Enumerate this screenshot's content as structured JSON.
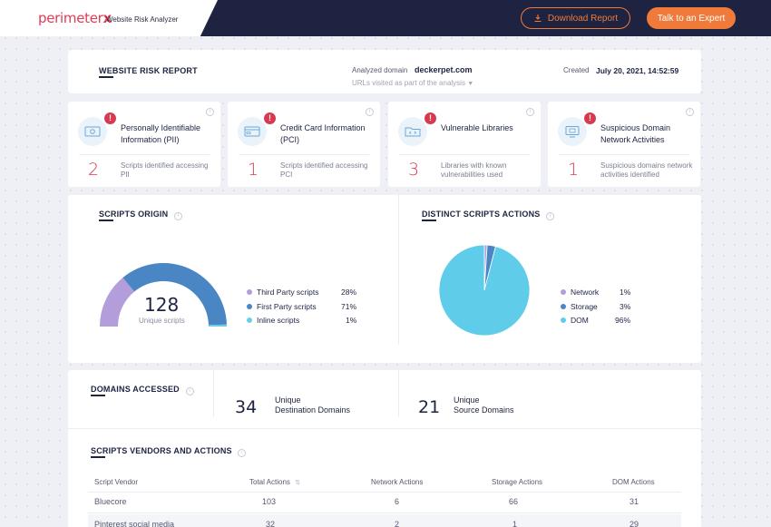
{
  "header": {
    "logo_text": "perimeter",
    "logo_mark": "x",
    "logo_subtitle": "Website Risk Analyzer",
    "download_label": "Download Report",
    "expert_label": "Talk to an Expert",
    "accent_color": "#f07a3a"
  },
  "report": {
    "title": "WEBSITE RISK REPORT",
    "domain_label": "Analyzed domain",
    "domain_value": "deckerpet.com",
    "urls_label": "URLs visited as part of the analysis",
    "created_label": "Created",
    "created_value": "July 20, 2021, 14:52:59"
  },
  "kpis": [
    {
      "title": "Personally Identifiable Information (PII)",
      "value": "2",
      "desc": "Scripts identified accessing PII",
      "icon": "id-card-icon"
    },
    {
      "title": "Credit Card Information (PCI)",
      "value": "1",
      "desc": "Scripts identified accessing PCI",
      "icon": "credit-card-icon"
    },
    {
      "title": "Vulnerable Libraries",
      "value": "3",
      "desc": "Libraries with known vulnerabilities used",
      "icon": "code-folder-icon"
    },
    {
      "title": "Suspicious Domain Network Activities",
      "value": "1",
      "desc": "Suspicious domains network activities identified",
      "icon": "monitor-icon"
    }
  ],
  "scripts_origin": {
    "title": "SCRIPTS ORIGIN",
    "total": "128",
    "total_label": "Unique scripts",
    "items": [
      {
        "label": "Third Party scripts",
        "value": "28%",
        "pct": 28,
        "color": "#b39ddb"
      },
      {
        "label": "First Party scripts",
        "value": "71%",
        "pct": 71,
        "color": "#4b86c4"
      },
      {
        "label": "Inline scripts",
        "value": "1%",
        "pct": 1,
        "color": "#6ccde8"
      }
    ]
  },
  "scripts_actions": {
    "title": "DISTINCT SCRIPTS ACTIONS",
    "items": [
      {
        "label": "Network",
        "value": "1%",
        "pct": 1,
        "color": "#b39ddb"
      },
      {
        "label": "Storage",
        "value": "3%",
        "pct": 3,
        "color": "#4b86c4"
      },
      {
        "label": "DOM",
        "value": "96%",
        "pct": 96,
        "color": "#5fcdea"
      }
    ]
  },
  "domains": {
    "title": "DOMAINS ACCESSED",
    "destination_count": "34",
    "destination_label_1": "Unique",
    "destination_label_2": "Destination Domains",
    "source_count": "21",
    "source_label_1": "Unique",
    "source_label_2": "Source Domains"
  },
  "vendors": {
    "title": "SCRIPTS VENDORS AND ACTIONS",
    "columns": [
      "Script Vendor",
      "Total Actions",
      "Network Actions",
      "Storage Actions",
      "DOM Actions"
    ],
    "rows": [
      [
        "Bluecore",
        "103",
        "6",
        "66",
        "31"
      ],
      [
        "Pinterest social media",
        "32",
        "2",
        "1",
        "29"
      ]
    ]
  }
}
